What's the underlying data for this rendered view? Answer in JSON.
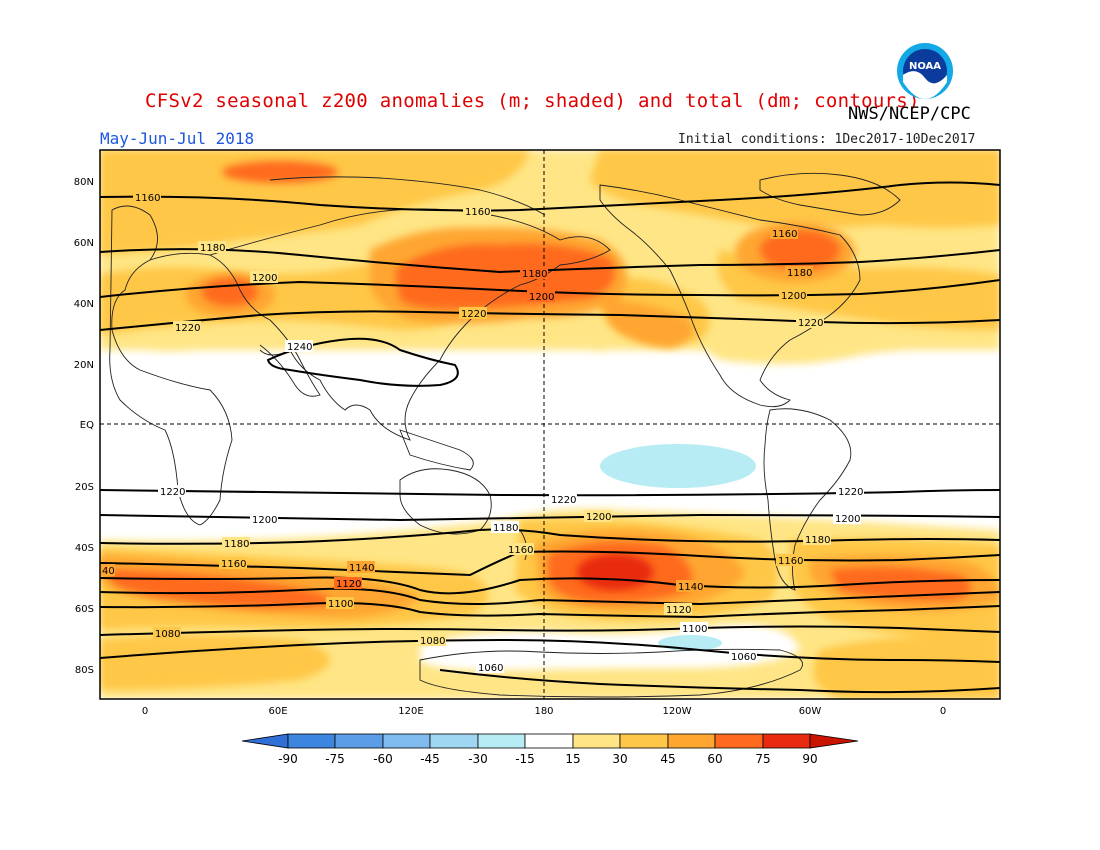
{
  "header": {
    "title": "CFSv2 seasonal z200 anomalies (m; shaded) and total (dm; contours)",
    "agency": "NWS/NCEP/CPC",
    "period": "May-Jun-Jul 2018",
    "initial_conditions": "Initial conditions: 1Dec2017-10Dec2017",
    "logo_text": "NOAA"
  },
  "axes": {
    "lat_labels": [
      "80N",
      "60N",
      "40N",
      "20N",
      "EQ",
      "20S",
      "40S",
      "60S",
      "80S"
    ],
    "lon_labels": [
      "0",
      "60E",
      "120E",
      "180",
      "120W",
      "60W",
      "0"
    ]
  },
  "colorbar": {
    "ticks": [
      "-90",
      "-75",
      "-60",
      "-45",
      "-30",
      "-15",
      "15",
      "30",
      "45",
      "60",
      "75",
      "90"
    ],
    "colors": [
      "#2f6fd6",
      "#3d86e0",
      "#5b9de6",
      "#7fbbee",
      "#9fd6f2",
      "#b8ecf4",
      "#ffffff",
      "#ffe585",
      "#ffc747",
      "#ffa630",
      "#ff6a1e",
      "#e82a10",
      "#c81400"
    ]
  },
  "contour_labels": [
    "1160",
    "1160",
    "1180",
    "1180",
    "1200",
    "1200",
    "1220",
    "1220",
    "1240",
    "1160",
    "1180",
    "1200",
    "1220",
    "1220",
    "1200",
    "1180",
    "1160",
    "1140",
    "1120",
    "1100",
    "1080",
    "1060",
    "1220",
    "1200",
    "1180",
    "1160",
    "1140",
    "1120",
    "1100",
    "1080",
    "1060",
    "1220",
    "1200",
    "1180",
    "1160",
    "40"
  ]
}
